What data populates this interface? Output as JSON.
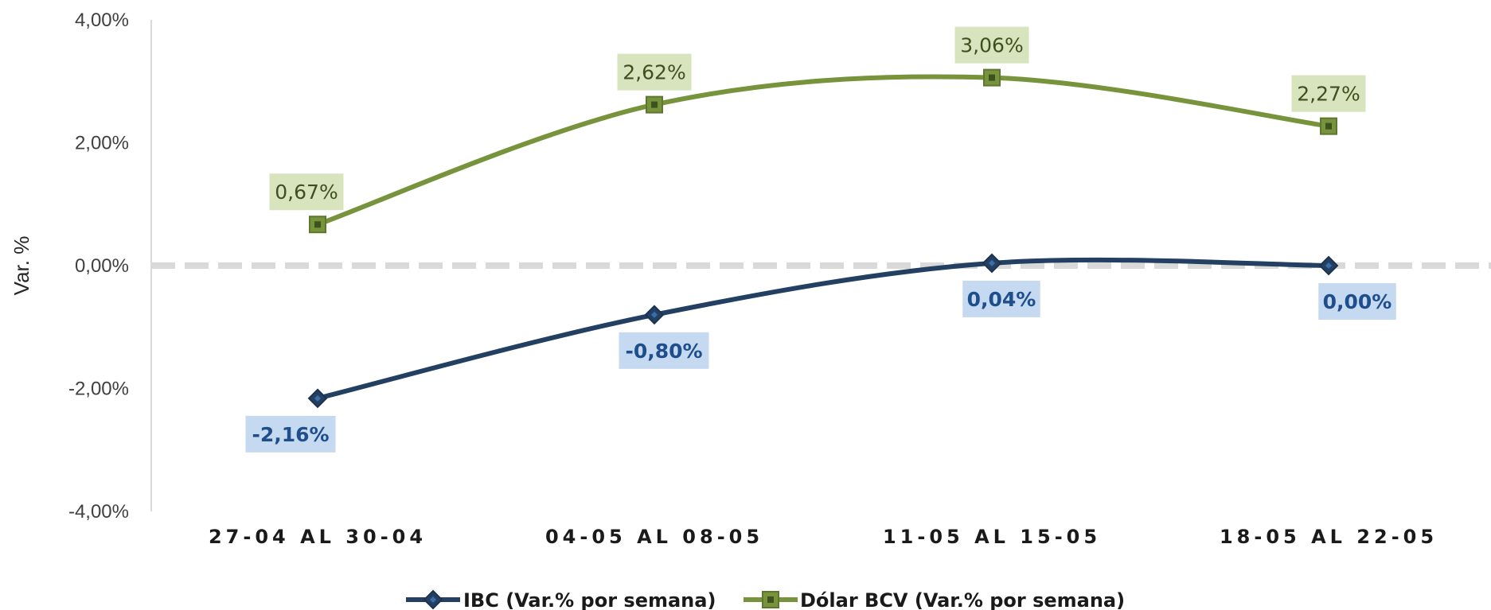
{
  "chart_data": {
    "type": "line",
    "title": "",
    "xlabel": "",
    "ylabel": "Var. %",
    "categories": [
      "27-04 AL 30-04",
      "04-05 AL 08-05",
      "11-05 AL 15-05",
      "18-05 AL 22-05"
    ],
    "ylim": [
      -4,
      4
    ],
    "yticks": [
      4,
      2,
      0,
      -2,
      -4
    ],
    "ytick_labels": [
      "4,00%",
      "2,00%",
      "0,00%",
      "-2,00%",
      "-4,00%"
    ],
    "grid": false,
    "zero_line": "dashed",
    "smooth": true,
    "legend_position": "bottom",
    "series": [
      {
        "name": "IBC (Var.% por semana)",
        "values": [
          -2.16,
          -0.8,
          0.04,
          0.0
        ],
        "labels": [
          "-2,16%",
          "-0,80%",
          "0,04%",
          "0,00%"
        ],
        "color": "#233f62",
        "marker": "diamond",
        "label_bg": "#c5d9f1",
        "label_color": "#1f4e8c",
        "label_position": "below"
      },
      {
        "name": "Dólar BCV (Var.% por semana)",
        "values": [
          0.67,
          2.62,
          3.06,
          2.27
        ],
        "labels": [
          "0,67%",
          "2,62%",
          "3,06%",
          "2,27%"
        ],
        "color": "#77933c",
        "marker": "square",
        "label_bg": "#d7e4bd",
        "label_color": "#3f4f1f",
        "label_position": "above"
      }
    ]
  }
}
